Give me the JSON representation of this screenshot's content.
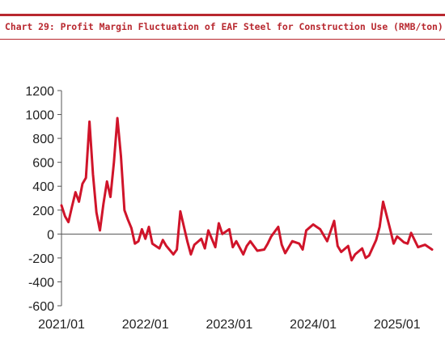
{
  "page": {
    "title": "Chart 29: Profit Margin Fluctuation of EAF Steel for Construction Use (RMB/ton)"
  },
  "colors": {
    "accent": "#b8282f",
    "series": "#d0142a",
    "axis": "#555555"
  },
  "chart_data": {
    "type": "line",
    "title": "Chart 29: Profit Margin Fluctuation of EAF Steel for Construction Use (RMB/ton)",
    "xlabel": "",
    "ylabel": "",
    "ylim": [
      -600,
      1200
    ],
    "yticks": [
      1200,
      1000,
      800,
      600,
      400,
      200,
      0,
      -200,
      -400,
      -600
    ],
    "xlim": [
      "2021-01",
      "2025-06"
    ],
    "xticks": [
      "2021/01",
      "2022/01",
      "2023/01",
      "2024/01",
      "2025/01"
    ],
    "grid": false,
    "legend": "none",
    "series": [
      {
        "x": [
          "2021-01",
          "2021-01",
          "2021-02",
          "2021-02",
          "2021-03",
          "2021-03",
          "2021-04",
          "2021-04",
          "2021-05",
          "2021-05",
          "2021-06",
          "2021-06",
          "2021-07",
          "2021-07",
          "2021-08",
          "2021-08",
          "2021-09",
          "2021-09",
          "2021-10",
          "2021-10",
          "2021-11",
          "2021-11",
          "2021-12",
          "2021-12",
          "2022-01",
          "2022-01",
          "2022-02",
          "2022-03",
          "2022-03",
          "2022-04",
          "2022-05",
          "2022-05",
          "2022-06",
          "2022-07",
          "2022-07",
          "2022-08",
          "2022-09",
          "2022-09",
          "2022-10",
          "2022-11",
          "2022-11",
          "2022-12",
          "2023-01",
          "2023-01",
          "2023-02",
          "2023-03",
          "2023-03",
          "2023-04",
          "2023-05",
          "2023-06",
          "2023-06",
          "2023-07",
          "2023-08",
          "2023-08",
          "2023-09",
          "2023-10",
          "2023-11",
          "2023-11",
          "2023-12",
          "2024-01",
          "2024-01",
          "2024-02",
          "2024-03",
          "2024-04",
          "2024-04",
          "2024-05",
          "2024-06",
          "2024-06",
          "2024-07",
          "2024-08",
          "2024-08",
          "2024-09",
          "2024-10",
          "2024-10",
          "2024-11",
          "2024-12",
          "2024-12",
          "2025-01",
          "2025-02",
          "2025-02",
          "2025-03",
          "2025-04",
          "2025-05",
          "2025-06"
        ],
        "y": [
          240,
          150,
          100,
          230,
          350,
          270,
          420,
          470,
          940,
          500,
          180,
          30,
          250,
          440,
          310,
          600,
          970,
          650,
          200,
          120,
          50,
          -80,
          -60,
          40,
          -40,
          60,
          -80,
          -120,
          -50,
          -100,
          -170,
          -130,
          190,
          -60,
          -170,
          -90,
          -40,
          -120,
          30,
          -110,
          90,
          0,
          40,
          -110,
          -60,
          -170,
          -100,
          -60,
          -140,
          -130,
          -80,
          -20,
          60,
          -90,
          -160,
          -60,
          -80,
          -130,
          30,
          80,
          60,
          40,
          -60,
          110,
          -100,
          -150,
          -100,
          -220,
          -170,
          -120,
          -200,
          -180,
          -50,
          60,
          270,
          40,
          -80,
          -20,
          -70,
          -80,
          10,
          -110,
          -90,
          -130
        ]
      }
    ]
  }
}
